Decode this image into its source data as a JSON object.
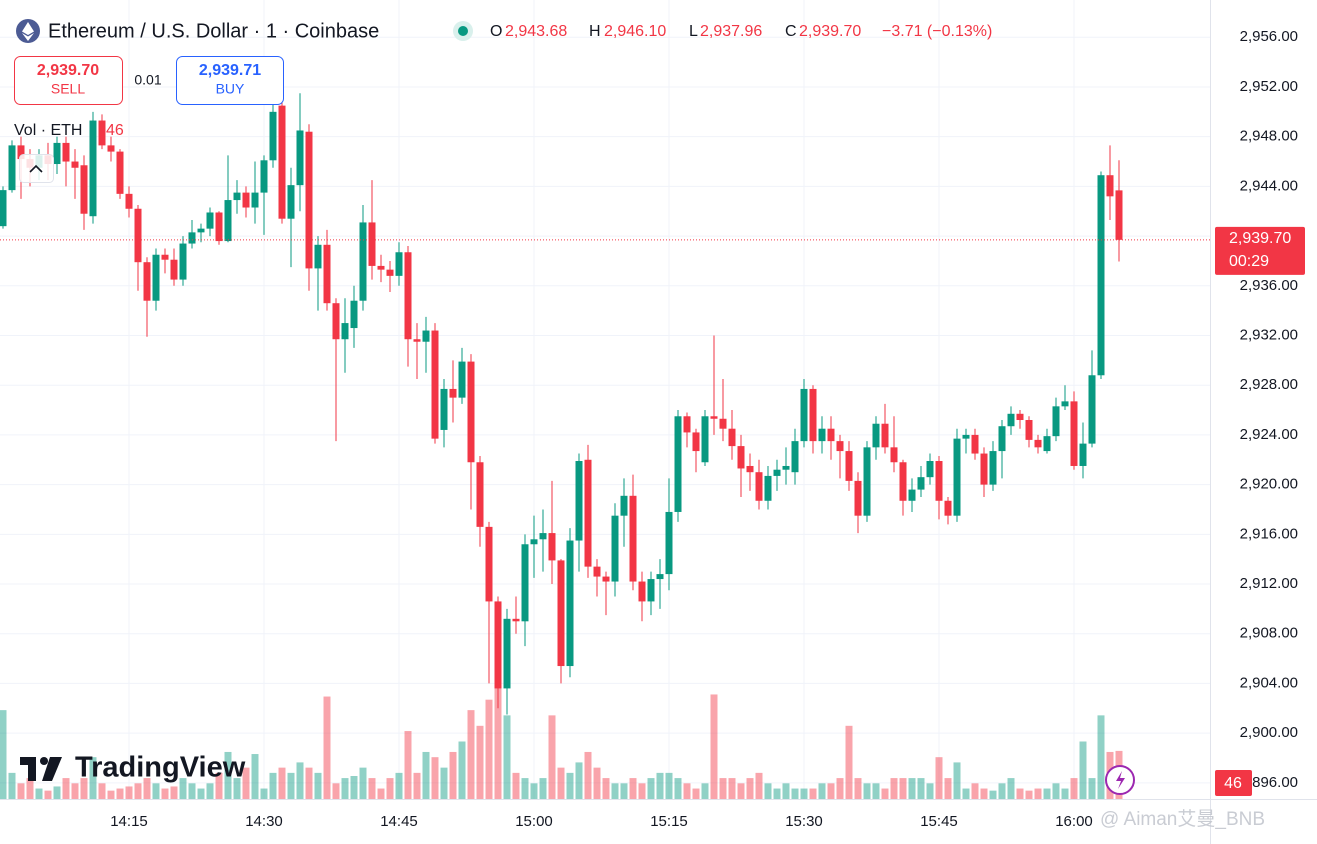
{
  "header": {
    "symbol": "Ethereum / U.S. Dollar · 1 · Coinbase",
    "ohlc": [
      {
        "label": "O",
        "value": "2,943.68"
      },
      {
        "label": "H",
        "value": "2,946.10"
      },
      {
        "label": "L",
        "value": "2,937.96"
      },
      {
        "label": "C",
        "value": "2,939.70"
      }
    ],
    "change": "−3.71 (−0.13%)",
    "sell": {
      "price": "2,939.70",
      "label": "SELL"
    },
    "spread": "0.01",
    "buy": {
      "price": "2,939.71",
      "label": "BUY"
    },
    "volume_legend": {
      "label": "Vol · ETH",
      "value": "46"
    }
  },
  "price_badge": {
    "price": "2,939.70",
    "countdown": "00:29"
  },
  "volume_badge": "46",
  "logo": "TradingView",
  "watermark": "@ Aiman艾曼_BNB",
  "chart_data": {
    "type": "candlestick",
    "up_color": "#089981",
    "down_color": "#f23645",
    "grid": true,
    "ylim": [
      2894.7,
      2959
    ],
    "yticks": [
      {
        "value": 2896,
        "label": "2,896.00"
      },
      {
        "value": 2900,
        "label": "2,900.00"
      },
      {
        "value": 2904,
        "label": "2,904.00"
      },
      {
        "value": 2908,
        "label": "2,908.00"
      },
      {
        "value": 2912,
        "label": "2,912.00"
      },
      {
        "value": 2916,
        "label": "2,916.00"
      },
      {
        "value": 2920,
        "label": "2,920.00"
      },
      {
        "value": 2924,
        "label": "2,924.00"
      },
      {
        "value": 2928,
        "label": "2,928.00"
      },
      {
        "value": 2932,
        "label": "2,932.00"
      },
      {
        "value": 2936,
        "label": "2,936.00"
      },
      {
        "value": 2940,
        "label": "2,940.00"
      },
      {
        "value": 2944,
        "label": "2,944.00"
      },
      {
        "value": 2948,
        "label": "2,948.00"
      },
      {
        "value": 2952,
        "label": "2,952.00"
      },
      {
        "value": 2956,
        "label": "2,956.00"
      }
    ],
    "categories": [
      null,
      null,
      null,
      null,
      null,
      null,
      null,
      null,
      null,
      null,
      null,
      null,
      null,
      null,
      "14:15",
      null,
      null,
      null,
      null,
      null,
      null,
      null,
      null,
      null,
      null,
      null,
      null,
      null,
      null,
      "14:30",
      null,
      null,
      null,
      null,
      null,
      null,
      null,
      null,
      null,
      null,
      null,
      null,
      null,
      null,
      "14:45",
      null,
      null,
      null,
      null,
      null,
      null,
      null,
      null,
      null,
      null,
      null,
      null,
      null,
      null,
      "15:00",
      null,
      null,
      null,
      null,
      null,
      null,
      null,
      null,
      null,
      null,
      null,
      null,
      null,
      null,
      "15:15",
      null,
      null,
      null,
      null,
      null,
      null,
      null,
      null,
      null,
      null,
      null,
      null,
      null,
      null,
      "15:30",
      null,
      null,
      null,
      null,
      null,
      null,
      null,
      null,
      null,
      null,
      null,
      null,
      null,
      null,
      "15:45",
      null,
      null,
      null,
      null,
      null,
      null,
      null,
      null,
      null,
      null,
      null,
      null,
      null,
      null,
      "16:00",
      null,
      null,
      null,
      null,
      null
    ],
    "open": [
      2940.8,
      2943.7,
      2947.3,
      2946.2,
      2945.5,
      2946.5,
      2945.8,
      2947.5,
      2946,
      2945.7,
      2941.6,
      2949.3,
      2947.3,
      2946.8,
      2943.4,
      2942.2,
      2937.9,
      2934.8,
      2938.5,
      2938.1,
      2936.5,
      2939.4,
      2940.3,
      2940.6,
      2941.9,
      2939.6,
      2942.9,
      2943.5,
      2942.3,
      2943.5,
      2946.1,
      2950.5,
      2941.4,
      2944.1,
      2948.4,
      2937.4,
      2939.3,
      2934.6,
      2931.7,
      2932.6,
      2934.8,
      2941.1,
      2937.6,
      2937.3,
      2936.8,
      2938.7,
      2931.7,
      2931.5,
      2932.4,
      2924.4,
      2927.7,
      2927,
      2929.9,
      2921.8,
      2916.6,
      2910.6,
      2903.6,
      2909.2,
      2909,
      2915.2,
      2915.6,
      2916.1,
      2913.9,
      2905.4,
      2915.5,
      2922,
      2913.4,
      2912.6,
      2912.2,
      2917.5,
      2919.1,
      2912.2,
      2910.6,
      2912.4,
      2912.8,
      2917.8,
      2925.5,
      2924.2,
      2921.8,
      2925.5,
      2925.3,
      2924.5,
      2923.1,
      2921.5,
      2921,
      2918.7,
      2920.7,
      2921.2,
      2921,
      2923.5,
      2927.7,
      2923.5,
      2924.5,
      2923.5,
      2922.7,
      2920.3,
      2917.5,
      2923,
      2924.9,
      2923,
      2921.8,
      2918.7,
      2919.6,
      2920.6,
      2921.9,
      2918.7,
      2917.5,
      2923.7,
      2924,
      2922.5,
      2920,
      2922.7,
      2924.7,
      2925.7,
      2925.2,
      2923.6,
      2922.7,
      2923.9,
      2926.3,
      2926.7,
      2921.5,
      2923.3,
      2928.8,
      2944.9,
      2943.68
    ],
    "high": [
      2944,
      2947.7,
      2948,
      2947,
      2947,
      2947.5,
      2948,
      2948,
      2947,
      2946.5,
      2950,
      2949.8,
      2948,
      2947,
      2944,
      2942.5,
      2938.3,
      2939,
      2939,
      2939,
      2940,
      2941.3,
      2941,
      2942.3,
      2942,
      2946.5,
      2944.5,
      2944,
      2946,
      2946.5,
      2952,
      2952.3,
      2945.5,
      2951.5,
      2949,
      2940,
      2940.5,
      2935,
      2935,
      2936,
      2942.5,
      2944.5,
      2938.5,
      2938,
      2939.5,
      2939.2,
      2933,
      2933.5,
      2933,
      2928.5,
      2930,
      2931,
      2930.5,
      2922.3,
      2917,
      2911,
      2910,
      2911,
      2916,
      2917.5,
      2918,
      2920.3,
      2914,
      2916.5,
      2922.5,
      2923.2,
      2914,
      2913,
      2918.5,
      2920.5,
      2920.8,
      2913,
      2913,
      2914,
      2920.5,
      2926,
      2925.8,
      2924.5,
      2926,
      2932,
      2928.5,
      2926,
      2924,
      2922.5,
      2922,
      2921.5,
      2922,
      2923,
      2924.5,
      2928.5,
      2928,
      2925.5,
      2925.5,
      2924,
      2923.5,
      2921,
      2923.5,
      2925.5,
      2926.5,
      2925.5,
      2922,
      2920.5,
      2921.5,
      2922.5,
      2922.3,
      2919,
      2924.5,
      2924.5,
      2924.5,
      2923,
      2923.5,
      2925.2,
      2926.3,
      2926,
      2925.5,
      2924,
      2924.5,
      2927,
      2928,
      2927.5,
      2925,
      2930.8,
      2945.2,
      2947.3,
      2946.1
    ],
    "low": [
      2940.6,
      2943.5,
      2943,
      2944,
      2944.5,
      2944.5,
      2945,
      2944,
      2943,
      2940.5,
      2941,
      2947,
      2946,
      2943,
      2941.5,
      2935.6,
      2931.9,
      2934,
      2937,
      2936,
      2936,
      2939,
      2939.5,
      2940,
      2939.3,
      2939.5,
      2941.8,
      2941.5,
      2941,
      2940.1,
      2945.5,
      2941,
      2937.5,
      2942,
      2935.6,
      2934,
      2934,
      2923.5,
      2929,
      2931,
      2934,
      2936.5,
      2936.3,
      2935.5,
      2936,
      2929.5,
      2928.5,
      2929,
      2923.3,
      2923,
      2925,
      2926.5,
      2918,
      2915,
      2904,
      2902,
      2901.5,
      2908,
      2907,
      2912.5,
      2913,
      2912,
      2904,
      2904.5,
      2913,
      2912.5,
      2911,
      2909.5,
      2911,
      2915,
      2911.5,
      2909,
      2909.5,
      2910,
      2911.5,
      2917,
      2923,
      2921,
      2921.5,
      2924,
      2923.5,
      2922,
      2919,
      2919.5,
      2918,
      2918,
      2919.5,
      2920,
      2920,
      2923,
      2922.5,
      2922.5,
      2922,
      2920.5,
      2919.5,
      2916.1,
      2917,
      2922,
      2922.5,
      2921,
      2917.5,
      2917.8,
      2919,
      2920,
      2917.2,
      2916.8,
      2917,
      2922.5,
      2922,
      2919,
      2919.5,
      2920.5,
      2924,
      2924.5,
      2923,
      2922.5,
      2922.5,
      2923.5,
      2926,
      2921.2,
      2920.5,
      2923,
      2928.5,
      2941.3,
      2937.96
    ],
    "close": [
      2943.7,
      2947.3,
      2946.2,
      2945.5,
      2946.5,
      2945.8,
      2947.5,
      2946,
      2945.5,
      2941.8,
      2949.3,
      2947.3,
      2946.8,
      2943.4,
      2942.2,
      2937.9,
      2934.8,
      2938.5,
      2938.1,
      2936.5,
      2939.4,
      2940.3,
      2940.6,
      2941.9,
      2939.6,
      2942.9,
      2943.5,
      2942.3,
      2943.5,
      2946.1,
      2950,
      2941.4,
      2944.1,
      2948.5,
      2937.4,
      2939.3,
      2934.6,
      2931.7,
      2933,
      2934.8,
      2941.1,
      2937.6,
      2937.3,
      2936.8,
      2938.7,
      2931.7,
      2931.5,
      2932.4,
      2923.7,
      2927.7,
      2927,
      2929.9,
      2921.8,
      2916.6,
      2910.6,
      2903.6,
      2909.2,
      2909,
      2915.2,
      2915.6,
      2916.1,
      2913.9,
      2905.4,
      2915.5,
      2921.9,
      2913.4,
      2912.6,
      2912.2,
      2917.5,
      2919.1,
      2912.2,
      2910.6,
      2912.4,
      2912.8,
      2917.8,
      2925.5,
      2924.2,
      2922.7,
      2925.5,
      2925.3,
      2924.5,
      2923.1,
      2921.3,
      2921,
      2918.7,
      2920.7,
      2921.2,
      2921.5,
      2923.5,
      2927.7,
      2923.5,
      2924.5,
      2923.5,
      2922.7,
      2920.3,
      2917.5,
      2923,
      2924.9,
      2923,
      2921.8,
      2918.7,
      2919.6,
      2920.6,
      2921.9,
      2918.7,
      2917.5,
      2923.7,
      2924,
      2922.5,
      2920,
      2922.7,
      2924.7,
      2925.7,
      2925.2,
      2923.6,
      2923,
      2923.9,
      2926.3,
      2926.7,
      2921.5,
      2923.3,
      2928.8,
      2944.9,
      2943.2,
      2939.7
    ],
    "volume": [
      85,
      25,
      15,
      20,
      10,
      8,
      12,
      20,
      15,
      20,
      40,
      15,
      8,
      10,
      12,
      15,
      20,
      15,
      10,
      12,
      20,
      15,
      10,
      15,
      25,
      45,
      20,
      30,
      43,
      10,
      25,
      30,
      25,
      35,
      30,
      25,
      98,
      15,
      20,
      22,
      30,
      20,
      10,
      20,
      25,
      65,
      25,
      45,
      40,
      30,
      45,
      55,
      85,
      70,
      95,
      110,
      80,
      25,
      20,
      15,
      20,
      80,
      30,
      25,
      35,
      45,
      30,
      20,
      15,
      15,
      20,
      15,
      20,
      25,
      25,
      20,
      15,
      10,
      15,
      100,
      20,
      20,
      15,
      20,
      25,
      15,
      10,
      15,
      10,
      10,
      10,
      15,
      15,
      20,
      70,
      20,
      15,
      15,
      10,
      20,
      20,
      20,
      20,
      15,
      40,
      20,
      35,
      10,
      15,
      10,
      8,
      15,
      20,
      10,
      8,
      10,
      10,
      15,
      10,
      20,
      55,
      20,
      80,
      45,
      46
    ]
  }
}
